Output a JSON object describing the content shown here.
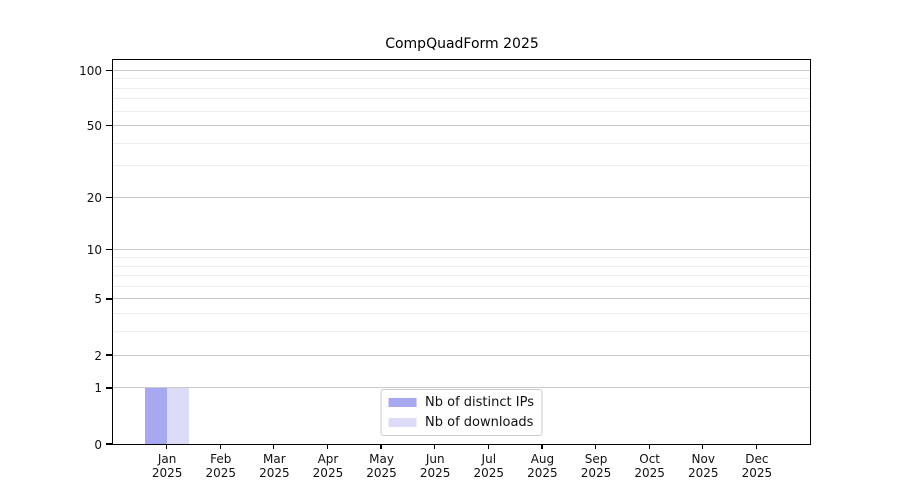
{
  "chart_data": {
    "type": "bar",
    "title": "CompQuadForm 2025",
    "categories": [
      "Jan 2025",
      "Feb 2025",
      "Mar 2025",
      "Apr 2025",
      "May 2025",
      "Jun 2025",
      "Jul 2025",
      "Aug 2025",
      "Sep 2025",
      "Oct 2025",
      "Nov 2025",
      "Dec 2025"
    ],
    "x_tick_labels": [
      {
        "line1": "Jan",
        "line2": "2025"
      },
      {
        "line1": "Feb",
        "line2": "2025"
      },
      {
        "line1": "Mar",
        "line2": "2025"
      },
      {
        "line1": "Apr",
        "line2": "2025"
      },
      {
        "line1": "May",
        "line2": "2025"
      },
      {
        "line1": "Jun",
        "line2": "2025"
      },
      {
        "line1": "Jul",
        "line2": "2025"
      },
      {
        "line1": "Aug",
        "line2": "2025"
      },
      {
        "line1": "Sep",
        "line2": "2025"
      },
      {
        "line1": "Oct",
        "line2": "2025"
      },
      {
        "line1": "Nov",
        "line2": "2025"
      },
      {
        "line1": "Dec",
        "line2": "2025"
      }
    ],
    "series": [
      {
        "name": "Nb of distinct IPs",
        "color": "#a8a8f0",
        "values": [
          1,
          0,
          0,
          0,
          0,
          0,
          0,
          0,
          0,
          0,
          0,
          0
        ]
      },
      {
        "name": "Nb of downloads",
        "color": "#dcdcf8",
        "values": [
          1,
          0,
          0,
          0,
          0,
          0,
          0,
          0,
          0,
          0,
          0,
          0
        ]
      }
    ],
    "y_axis": {
      "scale": "log1p",
      "major_ticks": [
        0,
        1,
        2,
        5,
        10,
        20,
        50,
        100
      ],
      "minor_gridlines": [
        3,
        4,
        6,
        7,
        8,
        9,
        30,
        40,
        60,
        70,
        80,
        90
      ],
      "max": 113.6
    },
    "xlabel": "",
    "ylabel": "",
    "grid": true,
    "legend_position": "lower center",
    "colors": {
      "grid_major": "#c9c9c9",
      "grid_minor": "#ededed",
      "axis": "#000000",
      "text": "#111111",
      "legend_border": "#cccccc"
    }
  }
}
